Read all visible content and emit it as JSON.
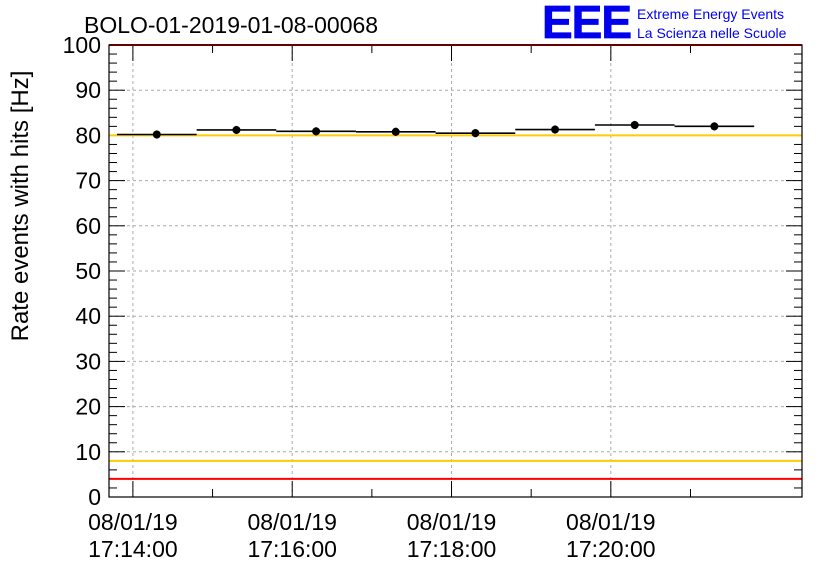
{
  "chart_data": {
    "type": "scatter",
    "title": "BOLO-01-2019-01-08-00068",
    "ylabel": "Rate events with hits [Hz]",
    "xlabel": "",
    "ylim": [
      0,
      100
    ],
    "xlim": [
      -0.3,
      8.4
    ],
    "x_unit": "minutes after 08/01/19 17:14:00",
    "y_ticks": [
      "0",
      "10",
      "20",
      "30",
      "40",
      "50",
      "60",
      "70",
      "80",
      "90",
      "100"
    ],
    "x_ticks": [
      {
        "x": 0,
        "date": "08/01/19",
        "time": "17:14:00"
      },
      {
        "x": 2,
        "date": "08/01/19",
        "time": "17:16:00"
      },
      {
        "x": 4,
        "date": "08/01/19",
        "time": "17:18:00"
      },
      {
        "x": 6,
        "date": "08/01/19",
        "time": "17:20:00"
      }
    ],
    "grid": true,
    "points": [
      {
        "x": 0.3,
        "y": 80.2,
        "err": 0.9
      },
      {
        "x": 1.3,
        "y": 81.2,
        "err": 0.9
      },
      {
        "x": 2.3,
        "y": 80.9,
        "err": 0.9
      },
      {
        "x": 3.3,
        "y": 80.8,
        "err": 0.9
      },
      {
        "x": 4.3,
        "y": 80.5,
        "err": 0.9
      },
      {
        "x": 5.3,
        "y": 81.3,
        "err": 0.9
      },
      {
        "x": 6.3,
        "y": 82.3,
        "err": 0.9
      },
      {
        "x": 7.3,
        "y": 82.0,
        "err": 0.9
      }
    ],
    "reference_lines": [
      {
        "y": 100,
        "color": "#ff0000"
      },
      {
        "y": 4,
        "color": "#ff0000"
      },
      {
        "y": 80,
        "color": "#ffcc00"
      },
      {
        "y": 8,
        "color": "#ffcc00"
      }
    ]
  },
  "logo": {
    "text": "EEE",
    "line1": "Extreme Energy Events",
    "line2": "La Scienza nelle Scuole",
    "color": "#0000ee"
  }
}
